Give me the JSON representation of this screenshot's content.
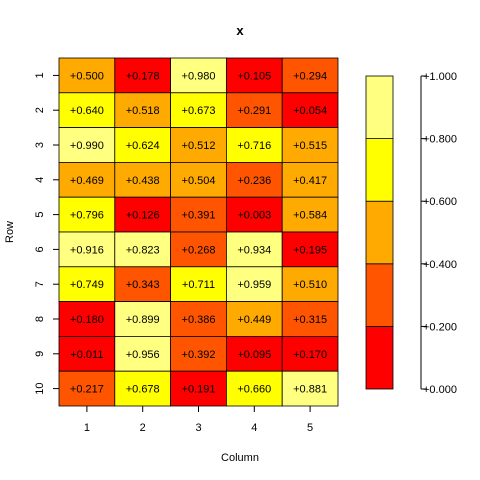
{
  "chart_data": {
    "type": "heatmap",
    "title": "x",
    "xlabel": "Column",
    "ylabel": "Row",
    "x_categories": [
      "1",
      "2",
      "3",
      "4",
      "5"
    ],
    "y_categories": [
      "1",
      "2",
      "3",
      "4",
      "5",
      "6",
      "7",
      "8",
      "9",
      "10"
    ],
    "values": [
      [
        0.5,
        0.178,
        0.98,
        0.105,
        0.294
      ],
      [
        0.64,
        0.518,
        0.673,
        0.291,
        0.054
      ],
      [
        0.99,
        0.624,
        0.512,
        0.716,
        0.515
      ],
      [
        0.469,
        0.438,
        0.504,
        0.236,
        0.417
      ],
      [
        0.796,
        0.126,
        0.391,
        0.003,
        0.584
      ],
      [
        0.916,
        0.823,
        0.268,
        0.934,
        0.195
      ],
      [
        0.749,
        0.343,
        0.711,
        0.959,
        0.51
      ],
      [
        0.18,
        0.899,
        0.386,
        0.449,
        0.315
      ],
      [
        0.011,
        0.956,
        0.392,
        0.095,
        0.17
      ],
      [
        0.217,
        0.678,
        0.191,
        0.66,
        0.881
      ]
    ],
    "cell_labels": [
      [
        "+0.500",
        "+0.178",
        "+0.980",
        "+0.105",
        "+0.294"
      ],
      [
        "+0.640",
        "+0.518",
        "+0.673",
        "+0.291",
        "+0.054"
      ],
      [
        "+0.990",
        "+0.624",
        "+0.512",
        "+0.716",
        "+0.515"
      ],
      [
        "+0.469",
        "+0.438",
        "+0.504",
        "+0.236",
        "+0.417"
      ],
      [
        "+0.796",
        "+0.126",
        "+0.391",
        "+0.003",
        "+0.584"
      ],
      [
        "+0.916",
        "+0.823",
        "+0.268",
        "+0.934",
        "+0.195"
      ],
      [
        "+0.749",
        "+0.343",
        "+0.711",
        "+0.959",
        "+0.510"
      ],
      [
        "+0.180",
        "+0.899",
        "+0.386",
        "+0.449",
        "+0.315"
      ],
      [
        "+0.011",
        "+0.956",
        "+0.392",
        "+0.095",
        "+0.170"
      ],
      [
        "+0.217",
        "+0.678",
        "+0.191",
        "+0.660",
        "+0.881"
      ]
    ],
    "color_breaks": [
      0,
      0.2,
      0.4,
      0.6,
      0.8,
      1.0
    ],
    "colors": [
      "#FF0000",
      "#FF5500",
      "#FFAA00",
      "#FFFF00",
      "#FFFF80"
    ],
    "legend": {
      "placement": "right",
      "tick_values": [
        0,
        0.2,
        0.4,
        0.6,
        0.8,
        1.0
      ],
      "tick_labels": [
        "+0.000",
        "+0.200",
        "+0.400",
        "+0.600",
        "+0.800",
        "+1.000"
      ]
    },
    "grid": false
  }
}
